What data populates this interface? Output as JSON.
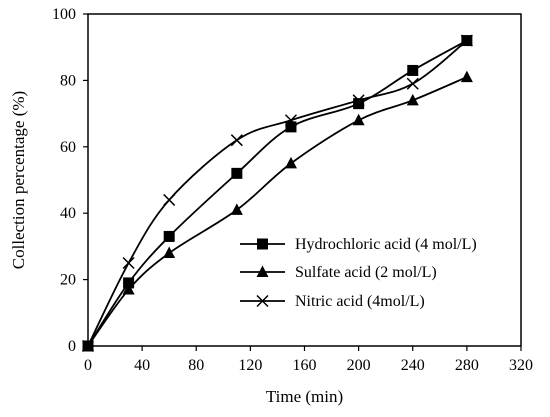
{
  "chart_data": {
    "type": "line",
    "xlabel": "Time (min)",
    "ylabel": "Collection percentage (%)",
    "xlim": [
      0,
      320
    ],
    "ylim": [
      0,
      100
    ],
    "xticks": [
      "0",
      "40",
      "80",
      "120",
      "160",
      "200",
      "240",
      "280",
      "320"
    ],
    "yticks": [
      "0",
      "20",
      "40",
      "60",
      "80",
      "100"
    ],
    "xtick_values": [
      0,
      40,
      80,
      120,
      160,
      200,
      240,
      280,
      320
    ],
    "ytick_values": [
      0,
      20,
      40,
      60,
      80,
      100
    ],
    "grid": false,
    "legend_position": "right-center",
    "line_color": "#000000",
    "series": [
      {
        "name": "Hydrochloric acid (4 mol/L)",
        "marker": "square",
        "x": [
          0,
          30,
          60,
          110,
          150,
          200,
          240,
          280
        ],
        "y": [
          0,
          19,
          33,
          52,
          66,
          73,
          83,
          92
        ]
      },
      {
        "name": "Sulfate acid (2 mol/L)",
        "marker": "triangle",
        "x": [
          0,
          30,
          60,
          110,
          150,
          200,
          240,
          280
        ],
        "y": [
          0,
          17,
          28,
          41,
          55,
          68,
          74,
          81
        ]
      },
      {
        "name": "Nitric acid (4mol/L)",
        "marker": "cross",
        "x": [
          0,
          30,
          60,
          110,
          150,
          200,
          240,
          280
        ],
        "y": [
          0,
          25,
          44,
          62,
          68,
          74,
          79,
          92
        ]
      }
    ]
  }
}
